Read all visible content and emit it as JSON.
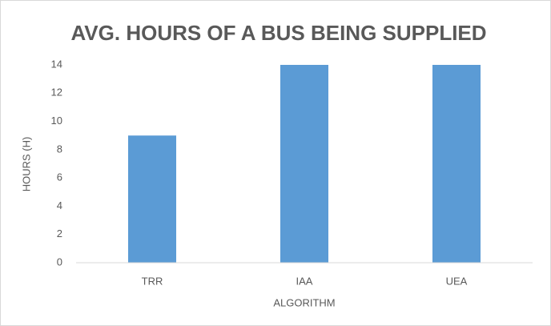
{
  "chart_data": {
    "type": "bar",
    "title": "AVG. HOURS OF A BUS BEING SUPPLIED",
    "categories": [
      "TRR",
      "IAA",
      "UEA"
    ],
    "values": [
      9,
      14,
      14
    ],
    "color": "#5b9bd5",
    "ylim": [
      0,
      14
    ],
    "yticks": [
      0,
      2,
      4,
      6,
      8,
      10,
      12,
      14
    ],
    "x_label": "ALGORITHM",
    "y_label": "HOURS (H)",
    "grid": false
  }
}
